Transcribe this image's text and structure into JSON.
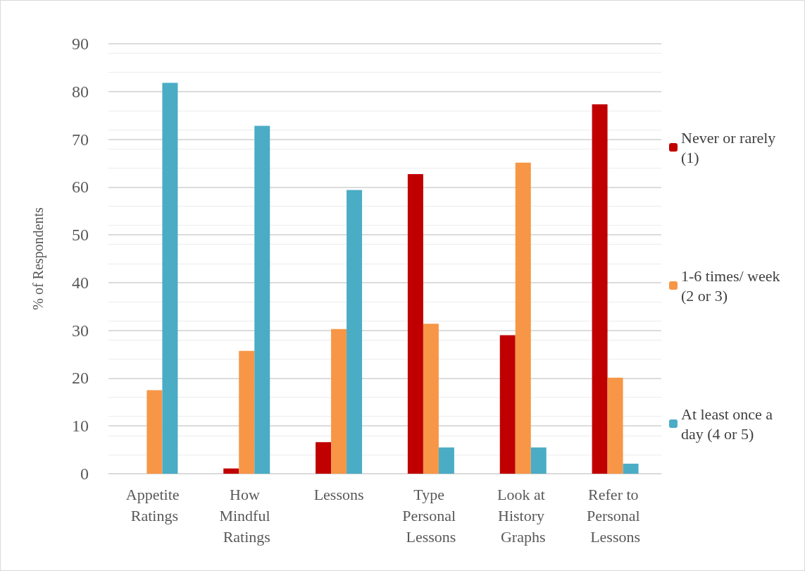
{
  "chart_data": {
    "type": "bar",
    "ylabel": "% of Respondents",
    "categories": [
      "Appetite Ratings",
      "How Mindful Ratings",
      "Lessons",
      "Type Personal Lessons",
      "Look at History Graphs",
      "Refer to Personal Lessons"
    ],
    "series": [
      {
        "name": "Never or rarely (1)",
        "color": "#c00000",
        "values": [
          0,
          1.1,
          6.6,
          62.7,
          29.0,
          77.3
        ]
      },
      {
        "name": "1-6 times/ week (2 or 3)",
        "color": "#f79646",
        "values": [
          17.5,
          25.7,
          30.3,
          31.4,
          65.1,
          20.1
        ]
      },
      {
        "name": "At least once a day (4 or 5)",
        "color": "#4bacc6",
        "values": [
          81.8,
          72.8,
          59.4,
          5.5,
          5.5,
          2.1
        ]
      }
    ],
    "ylim": [
      0,
      90
    ],
    "yticks": [
      0,
      10,
      20,
      30,
      40,
      50,
      60,
      70,
      80,
      90
    ],
    "grid": "y",
    "legend": "right"
  }
}
